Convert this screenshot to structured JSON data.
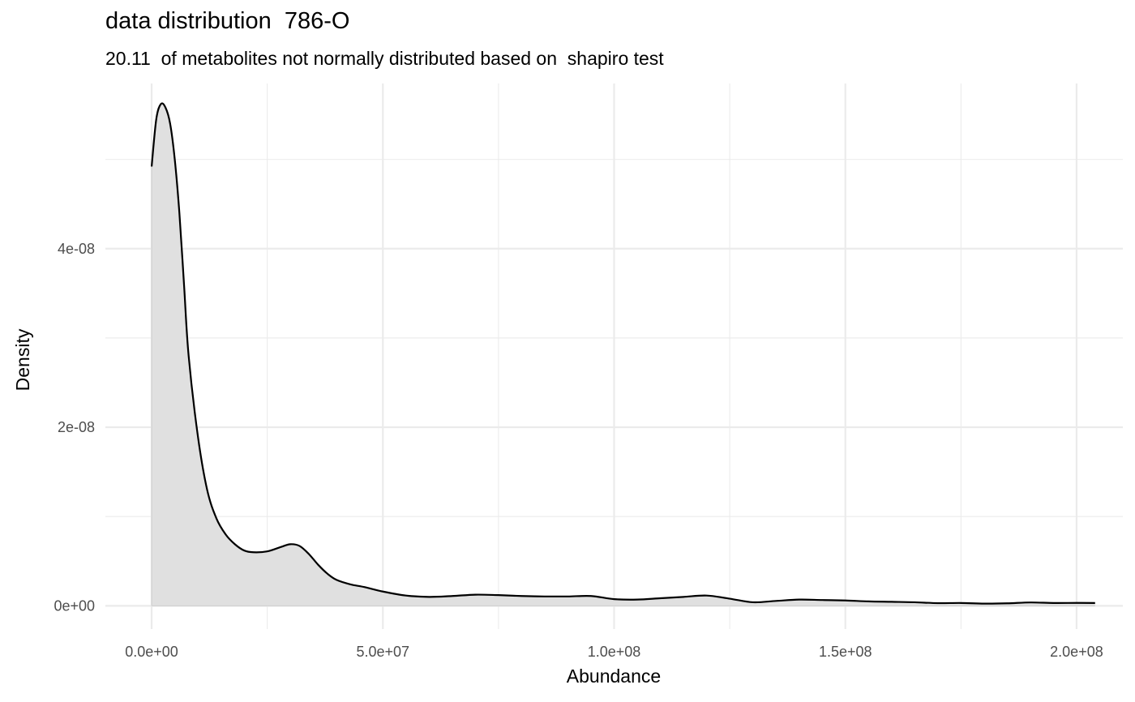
{
  "chart_data": {
    "type": "area",
    "title": "data distribution  786-O",
    "subtitle": "20.11  of metabolites not normally distributed based on  shapiro test",
    "xlabel": "Abundance",
    "ylabel": "Density",
    "xlim": [
      -10000000,
      210000000
    ],
    "ylim": [
      -2.6e-09,
      5.85e-08
    ],
    "x_major_ticks": [
      0,
      50000000,
      100000000,
      150000000,
      200000000
    ],
    "x_tick_labels": [
      "0.0e+00",
      "5.0e+07",
      "1.0e+08",
      "1.5e+08",
      "2.0e+08"
    ],
    "x_minor_ticks": [
      25000000,
      75000000,
      125000000,
      175000000
    ],
    "y_major_ticks": [
      0,
      2e-08,
      4e-08
    ],
    "y_tick_labels": [
      "0e+00",
      "2e-08",
      "4e-08"
    ],
    "y_minor_ticks": [
      1e-08,
      3e-08,
      5e-08
    ],
    "grid": true,
    "fill_color": "#e0e0e0",
    "line_color": "#000000",
    "grid_color": "#ebebeb",
    "series": [
      {
        "x": [
          0,
          1000000,
          2000000,
          3000000,
          4000000,
          5000000,
          6000000,
          7000000,
          8000000,
          10000000,
          12000000,
          14000000,
          16000000,
          18000000,
          20000000,
          22000000,
          25000000,
          28000000,
          30000000,
          32000000,
          34000000,
          36000000,
          38000000,
          40000000,
          43000000,
          46000000,
          50000000,
          55000000,
          60000000,
          65000000,
          70000000,
          75000000,
          80000000,
          85000000,
          90000000,
          95000000,
          100000000,
          105000000,
          110000000,
          115000000,
          120000000,
          125000000,
          130000000,
          135000000,
          140000000,
          145000000,
          150000000,
          155000000,
          160000000,
          165000000,
          170000000,
          175000000,
          180000000,
          185000000,
          190000000,
          195000000,
          200000000,
          204000000
        ],
        "y": [
          4.92e-08,
          5.45e-08,
          5.62e-08,
          5.58e-08,
          5.4e-08,
          5e-08,
          4.4e-08,
          3.6e-08,
          2.8e-08,
          1.9e-08,
          1.3e-08,
          9.8e-09,
          8e-09,
          6.9e-09,
          6.2e-09,
          6e-09,
          6.1e-09,
          6.6e-09,
          6.9e-09,
          6.7e-09,
          5.8e-09,
          4.6e-09,
          3.6e-09,
          2.9e-09,
          2.4e-09,
          2.1e-09,
          1.6e-09,
          1.15e-09,
          1e-09,
          1.1e-09,
          1.25e-09,
          1.2e-09,
          1.1e-09,
          1.05e-09,
          1.05e-09,
          1.1e-09,
          7.5e-10,
          7e-10,
          8.5e-10,
          1e-09,
          1.15e-09,
          8e-10,
          4e-10,
          5.5e-10,
          7e-10,
          6.5e-10,
          6e-10,
          5e-10,
          4.5e-10,
          4e-10,
          3e-10,
          3.2e-10,
          2.5e-10,
          2.8e-10,
          3.8e-10,
          3.2e-10,
          3.3e-10,
          3.2e-10
        ]
      }
    ]
  }
}
